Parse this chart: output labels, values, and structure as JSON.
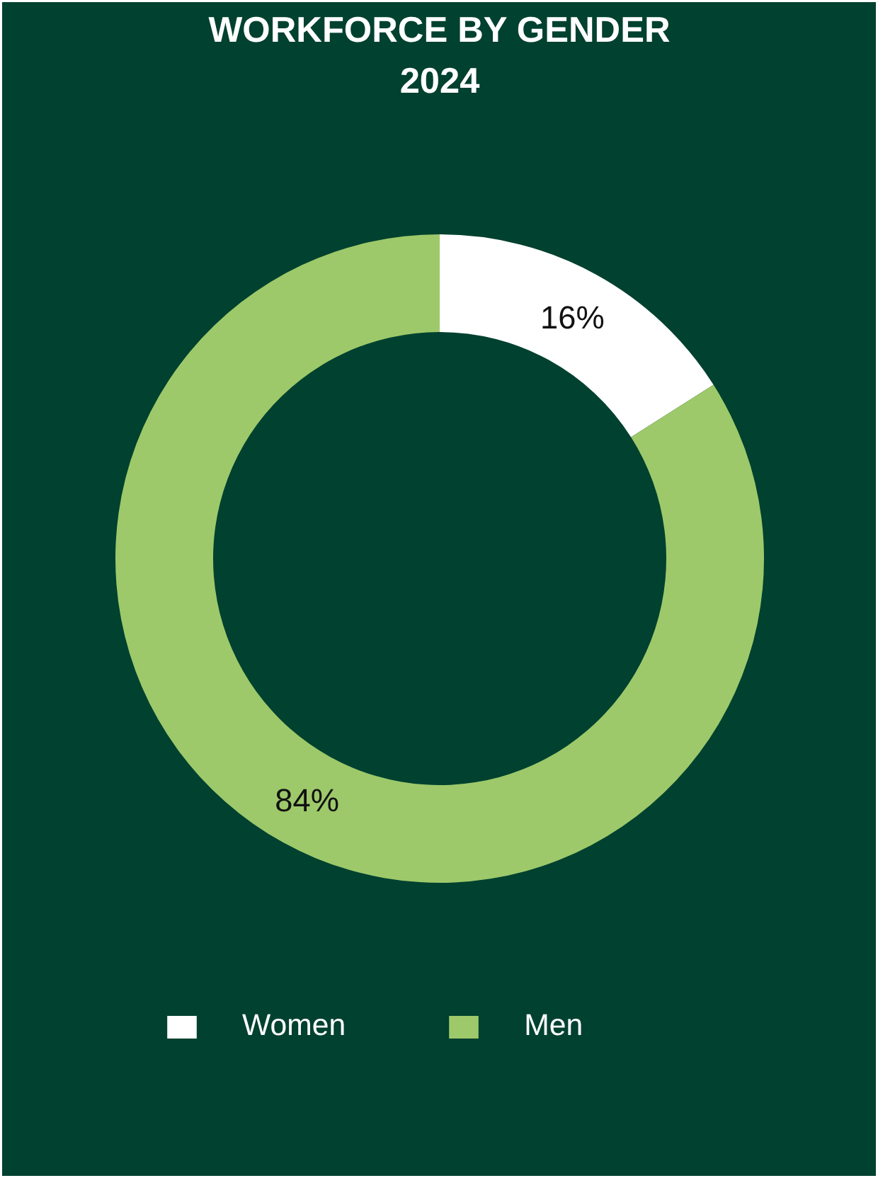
{
  "chart_data": {
    "type": "donut",
    "title": "WORKFORCE BY GENDER\n2024",
    "categories": [
      "Women",
      "Men"
    ],
    "values": [
      16,
      84
    ],
    "colors": [
      "#ffffff",
      "#9dc96a"
    ],
    "value_labels": [
      "16%",
      "84%"
    ],
    "legend": "bottom"
  }
}
